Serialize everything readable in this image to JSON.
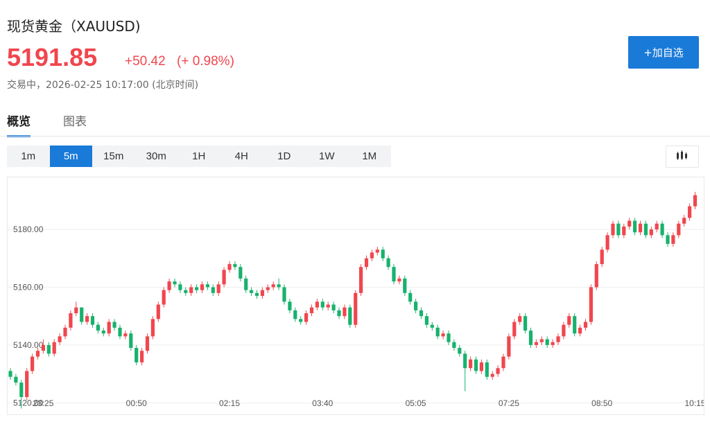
{
  "header": {
    "title": "现货黄金（XAUUSD)",
    "price": "5191.85",
    "change": "+50.42",
    "change_pct": "(+ 0.98%)",
    "status": "交易中，2026-02-25 10:17:00 (北京时间)",
    "watch_button": "+加自选"
  },
  "tabs": [
    "概览",
    "图表"
  ],
  "intervals": [
    "1m",
    "5m",
    "15m",
    "30m",
    "1H",
    "4H",
    "1D",
    "1W",
    "1M"
  ],
  "chart_data": {
    "type": "candlestick",
    "up_color": "#f0464e",
    "down_color": "#17b26d",
    "grid": true,
    "ylim": [
      5116,
      5198
    ],
    "yticks": [
      {
        "value": 5120,
        "label": "5120.00"
      },
      {
        "value": 5140,
        "label": "5140.00"
      },
      {
        "value": 5160,
        "label": "5160.00"
      },
      {
        "value": 5180,
        "label": "5180.00"
      }
    ],
    "categories": [
      null,
      null,
      null,
      null,
      null,
      null,
      "23:25",
      null,
      null,
      null,
      null,
      null,
      null,
      null,
      null,
      null,
      null,
      null,
      null,
      null,
      null,
      null,
      null,
      "00:50",
      null,
      null,
      null,
      null,
      null,
      null,
      null,
      null,
      null,
      null,
      null,
      null,
      null,
      null,
      null,
      null,
      "02:15",
      null,
      null,
      null,
      null,
      null,
      null,
      null,
      null,
      null,
      null,
      null,
      null,
      null,
      null,
      null,
      null,
      "03:40",
      null,
      null,
      null,
      null,
      null,
      null,
      null,
      null,
      null,
      null,
      null,
      null,
      null,
      null,
      null,
      null,
      "05:05",
      null,
      null,
      null,
      null,
      null,
      null,
      null,
      null,
      null,
      null,
      null,
      null,
      null,
      null,
      null,
      null,
      "07:25",
      null,
      null,
      null,
      null,
      null,
      null,
      null,
      null,
      null,
      null,
      null,
      null,
      null,
      null,
      null,
      null,
      "08:50",
      null,
      null,
      null,
      null,
      null,
      null,
      null,
      null,
      null,
      null,
      null,
      null,
      null,
      null,
      null,
      null,
      "10:15"
    ],
    "open": [
      5131,
      5129,
      5127,
      5122,
      5131,
      5136,
      5138,
      5140,
      5137,
      5141,
      5143,
      5146,
      5151,
      5153,
      5148,
      5150,
      5147,
      5145,
      5144,
      5148,
      5146,
      5143,
      5144,
      5139,
      5134,
      5138,
      5143,
      5149,
      5154,
      5159,
      5162,
      5161,
      5159,
      5158,
      5160,
      5159,
      5161,
      5160,
      5158,
      5161,
      5166,
      5168,
      5167,
      5163,
      5159,
      5158,
      5157,
      5159,
      5160,
      5161,
      5160,
      5155,
      5152,
      5149,
      5148,
      5151,
      5153,
      5155,
      5153,
      5154,
      5152,
      5150,
      5153,
      5147,
      5158,
      5167,
      5170,
      5172,
      5173,
      5170,
      5167,
      5162,
      5163,
      5158,
      5155,
      5152,
      5150,
      5147,
      5146,
      5143,
      5144,
      5141,
      5139,
      5137,
      5132,
      5135,
      5131,
      5134,
      5129,
      5130,
      5132,
      5136,
      5143,
      5148,
      5150,
      5145,
      5140,
      5141,
      5142,
      5140,
      5141,
      5143,
      5147,
      5150,
      5144,
      5146,
      5148,
      5160,
      5168,
      5173,
      5178,
      5182,
      5178,
      5181,
      5183,
      5179,
      5182,
      5178,
      5180,
      5182,
      5178,
      5175,
      5178,
      5182,
      5184,
      5188
    ],
    "high": [
      5132,
      5130,
      5128,
      5132,
      5137,
      5139,
      5142,
      5141,
      5142,
      5144,
      5147,
      5152,
      5155,
      5153,
      5151,
      5151,
      5148,
      5146,
      5149,
      5149,
      5147,
      5145,
      5145,
      5140,
      5139,
      5144,
      5150,
      5155,
      5160,
      5163,
      5163,
      5162,
      5160,
      5161,
      5161,
      5162,
      5162,
      5161,
      5162,
      5167,
      5169,
      5169,
      5168,
      5164,
      5160,
      5159,
      5160,
      5161,
      5162,
      5163,
      5161,
      5156,
      5153,
      5150,
      5152,
      5154,
      5156,
      5156,
      5155,
      5155,
      5153,
      5154,
      5154,
      5159,
      5168,
      5171,
      5173,
      5174,
      5174,
      5171,
      5168,
      5164,
      5164,
      5159,
      5156,
      5153,
      5151,
      5148,
      5147,
      5145,
      5145,
      5142,
      5140,
      5138,
      5136,
      5136,
      5135,
      5135,
      5131,
      5133,
      5137,
      5144,
      5149,
      5151,
      5151,
      5146,
      5142,
      5143,
      5143,
      5142,
      5144,
      5148,
      5151,
      5151,
      5147,
      5149,
      5161,
      5169,
      5174,
      5179,
      5183,
      5183,
      5182,
      5184,
      5184,
      5183,
      5183,
      5181,
      5183,
      5183,
      5179,
      5179,
      5183,
      5185,
      5189,
      5193
    ],
    "low": [
      5128,
      5126,
      5118,
      5121,
      5130,
      5135,
      5137,
      5136,
      5136,
      5140,
      5142,
      5145,
      5150,
      5147,
      5147,
      5146,
      5144,
      5143,
      5143,
      5145,
      5142,
      5142,
      5138,
      5133,
      5133,
      5137,
      5142,
      5148,
      5153,
      5158,
      5160,
      5158,
      5157,
      5157,
      5158,
      5158,
      5159,
      5157,
      5157,
      5160,
      5165,
      5166,
      5162,
      5158,
      5157,
      5156,
      5156,
      5158,
      5159,
      5159,
      5154,
      5151,
      5148,
      5147,
      5147,
      5150,
      5152,
      5152,
      5152,
      5151,
      5149,
      5149,
      5146,
      5146,
      5157,
      5166,
      5169,
      5171,
      5169,
      5166,
      5161,
      5161,
      5157,
      5154,
      5151,
      5149,
      5146,
      5145,
      5142,
      5142,
      5140,
      5138,
      5136,
      5124,
      5131,
      5130,
      5130,
      5128,
      5128,
      5129,
      5131,
      5135,
      5142,
      5147,
      5144,
      5139,
      5139,
      5140,
      5139,
      5139,
      5140,
      5142,
      5146,
      5143,
      5143,
      5145,
      5147,
      5159,
      5167,
      5172,
      5177,
      5177,
      5177,
      5180,
      5178,
      5178,
      5177,
      5177,
      5179,
      5177,
      5174,
      5174,
      5177,
      5181,
      5183,
      5187
    ],
    "close": [
      5129,
      5127,
      5122,
      5131,
      5136,
      5138,
      5140,
      5137,
      5141,
      5143,
      5146,
      5151,
      5153,
      5148,
      5150,
      5147,
      5145,
      5144,
      5148,
      5146,
      5143,
      5144,
      5139,
      5134,
      5138,
      5143,
      5149,
      5154,
      5159,
      5162,
      5161,
      5159,
      5158,
      5160,
      5159,
      5161,
      5160,
      5158,
      5161,
      5166,
      5168,
      5167,
      5163,
      5159,
      5158,
      5157,
      5159,
      5160,
      5161,
      5160,
      5155,
      5152,
      5149,
      5148,
      5151,
      5153,
      5155,
      5153,
      5154,
      5152,
      5150,
      5153,
      5147,
      5158,
      5167,
      5170,
      5172,
      5173,
      5170,
      5167,
      5162,
      5163,
      5158,
      5155,
      5152,
      5150,
      5147,
      5146,
      5143,
      5144,
      5141,
      5139,
      5137,
      5132,
      5135,
      5131,
      5134,
      5129,
      5130,
      5132,
      5136,
      5143,
      5148,
      5150,
      5145,
      5140,
      5141,
      5142,
      5140,
      5141,
      5143,
      5147,
      5150,
      5144,
      5146,
      5148,
      5160,
      5168,
      5173,
      5178,
      5182,
      5178,
      5181,
      5183,
      5179,
      5182,
      5178,
      5180,
      5182,
      5178,
      5175,
      5178,
      5182,
      5184,
      5188,
      5191.85
    ]
  }
}
